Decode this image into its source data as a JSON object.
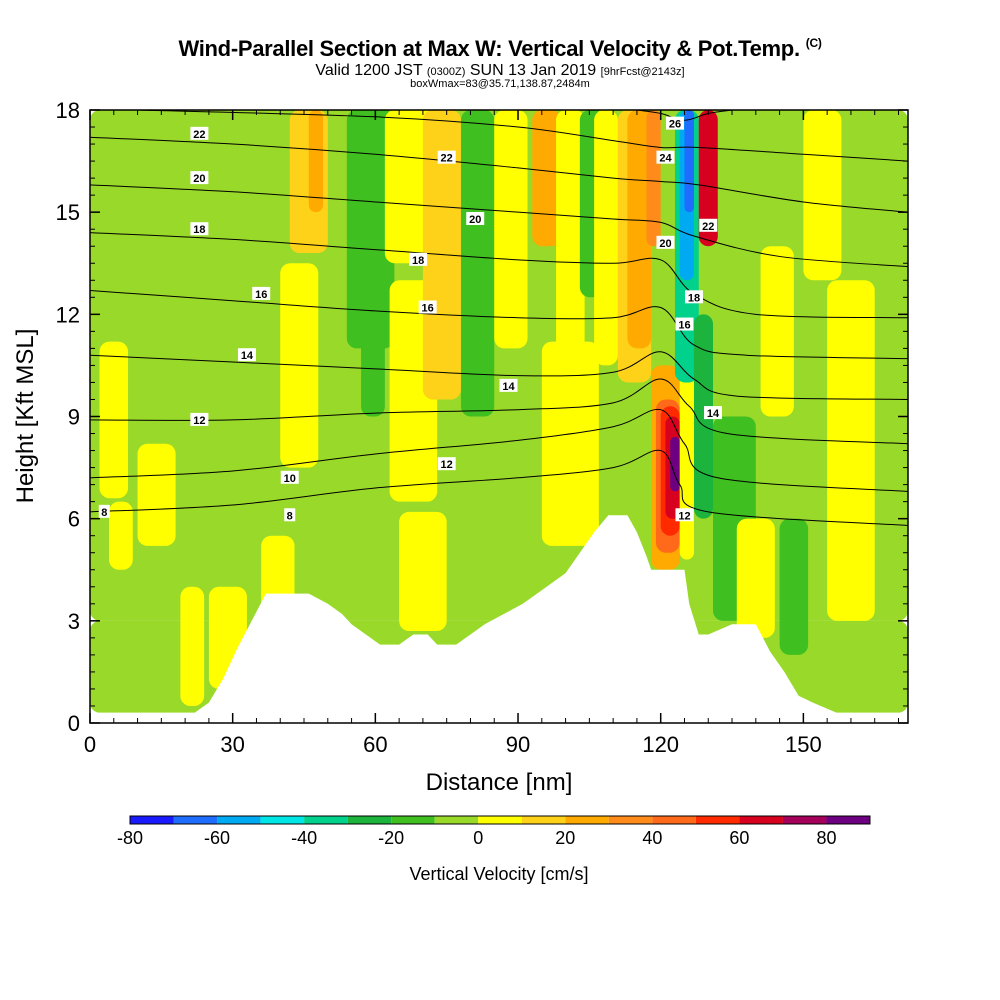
{
  "title": {
    "main": "Wind-Parallel Section at Max W: Vertical Velocity & Pot.Temp.",
    "copyright": "(C)",
    "valid_prefix": "Valid 1200 JST",
    "valid_z": "(0300Z)",
    "valid_date": "SUN 13 Jan 2019",
    "valid_fcst": "[9hrFcst@2143z]",
    "box": "boxWmax=83@35.71,138.87,2484m"
  },
  "chart_data": {
    "type": "heatmap",
    "title": "Wind-Parallel Section at Max W: Vertical Velocity & Pot.Temp.",
    "xlabel": "Distance [nm]",
    "ylabel": "Height [Kft MSL]",
    "xlim": [
      0,
      172
    ],
    "ylim": [
      0,
      18
    ],
    "x_ticks": [
      "0",
      "30",
      "60",
      "90",
      "120",
      "150"
    ],
    "x_tick_values": [
      0,
      30,
      60,
      90,
      120,
      150
    ],
    "y_ticks": [
      "0",
      "3",
      "6",
      "9",
      "12",
      "15",
      "18"
    ],
    "y_tick_values": [
      0,
      3,
      6,
      9,
      12,
      15,
      18
    ],
    "colorbar": {
      "label": "Vertical Velocity [cm/s]",
      "ticks": [
        "-80",
        "-60",
        "-40",
        "-20",
        "0",
        "20",
        "40",
        "60",
        "80"
      ],
      "range": [
        -80,
        90
      ],
      "bins": [
        {
          "min": -80,
          "max": -70,
          "color": "#1a1aff"
        },
        {
          "min": -70,
          "max": -60,
          "color": "#1f6dff"
        },
        {
          "min": -60,
          "max": -50,
          "color": "#00aaf2"
        },
        {
          "min": -50,
          "max": -40,
          "color": "#00e6e6"
        },
        {
          "min": -40,
          "max": -30,
          "color": "#00d18b"
        },
        {
          "min": -30,
          "max": -20,
          "color": "#1cb43c"
        },
        {
          "min": -20,
          "max": -10,
          "color": "#3fbf20"
        },
        {
          "min": -10,
          "max": 0,
          "color": "#99d92a"
        },
        {
          "min": 0,
          "max": 10,
          "color": "#ffff00"
        },
        {
          "min": 10,
          "max": 20,
          "color": "#ffd21a"
        },
        {
          "min": 20,
          "max": 30,
          "color": "#ffaa00"
        },
        {
          "min": 30,
          "max": 40,
          "color": "#ff8c1a"
        },
        {
          "min": 40,
          "max": 50,
          "color": "#ff6a1a"
        },
        {
          "min": 50,
          "max": 60,
          "color": "#ff2a00"
        },
        {
          "min": 60,
          "max": 70,
          "color": "#d7001e"
        },
        {
          "min": 70,
          "max": 80,
          "color": "#a4005a"
        },
        {
          "min": 80,
          "max": 90,
          "color": "#6c0080"
        }
      ]
    },
    "terrain": [
      [
        0,
        0.3
      ],
      [
        22,
        0.3
      ],
      [
        25,
        0.6
      ],
      [
        28,
        1.3
      ],
      [
        31,
        2.2
      ],
      [
        34,
        3.0
      ],
      [
        37,
        3.8
      ],
      [
        41,
        3.8
      ],
      [
        46,
        3.8
      ],
      [
        50,
        3.5
      ],
      [
        53,
        3.2
      ],
      [
        55,
        2.9
      ],
      [
        58,
        2.6
      ],
      [
        61,
        2.3
      ],
      [
        65,
        2.3
      ],
      [
        68,
        2.6
      ],
      [
        71,
        2.6
      ],
      [
        73,
        2.3
      ],
      [
        77,
        2.3
      ],
      [
        80,
        2.6
      ],
      [
        83,
        2.9
      ],
      [
        87,
        3.2
      ],
      [
        91,
        3.5
      ],
      [
        94,
        3.8
      ],
      [
        97,
        4.1
      ],
      [
        100,
        4.4
      ],
      [
        103,
        5.0
      ],
      [
        106,
        5.6
      ],
      [
        109,
        6.1
      ],
      [
        113,
        6.1
      ],
      [
        115,
        5.6
      ],
      [
        117,
        4.9
      ],
      [
        118,
        4.5
      ],
      [
        125,
        4.5
      ],
      [
        126,
        3.5
      ],
      [
        128,
        2.6
      ],
      [
        130,
        2.6
      ],
      [
        135,
        2.9
      ],
      [
        140,
        2.9
      ],
      [
        143,
        2.1
      ],
      [
        146,
        1.5
      ],
      [
        149,
        0.8
      ],
      [
        152,
        0.6
      ],
      [
        157,
        0.3
      ],
      [
        172,
        0.3
      ]
    ],
    "theta_contours": [
      {
        "label": "8",
        "points": [
          [
            0,
            6.2
          ],
          [
            30,
            6.4
          ],
          [
            60,
            6.9
          ],
          [
            90,
            7.2
          ],
          [
            110,
            7.5
          ],
          [
            120,
            8.0
          ],
          [
            124,
            7.0
          ],
          [
            130,
            6.2
          ],
          [
            172,
            5.8
          ]
        ]
      },
      {
        "label": "10",
        "points": [
          [
            0,
            7.2
          ],
          [
            30,
            7.4
          ],
          [
            60,
            7.9
          ],
          [
            90,
            8.3
          ],
          [
            110,
            8.7
          ],
          [
            120,
            9.2
          ],
          [
            125,
            8.2
          ],
          [
            132,
            7.2
          ],
          [
            172,
            6.8
          ]
        ]
      },
      {
        "label": "12",
        "points": [
          [
            0,
            8.9
          ],
          [
            30,
            8.9
          ],
          [
            60,
            9.1
          ],
          [
            90,
            9.2
          ],
          [
            110,
            9.4
          ],
          [
            120,
            10.1
          ],
          [
            126,
            9.3
          ],
          [
            134,
            8.5
          ],
          [
            172,
            8.2
          ]
        ]
      },
      {
        "label": "14",
        "points": [
          [
            0,
            10.8
          ],
          [
            30,
            10.6
          ],
          [
            60,
            10.4
          ],
          [
            90,
            10.2
          ],
          [
            110,
            10.3
          ],
          [
            120,
            10.9
          ],
          [
            127,
            10.1
          ],
          [
            136,
            9.6
          ],
          [
            172,
            9.5
          ]
        ]
      },
      {
        "label": "16",
        "points": [
          [
            0,
            12.7
          ],
          [
            30,
            12.4
          ],
          [
            60,
            12.1
          ],
          [
            90,
            11.9
          ],
          [
            110,
            11.9
          ],
          [
            120,
            12.2
          ],
          [
            127,
            11.1
          ],
          [
            138,
            10.8
          ],
          [
            172,
            10.7
          ]
        ]
      },
      {
        "label": "18",
        "points": [
          [
            0,
            14.4
          ],
          [
            30,
            14.2
          ],
          [
            60,
            13.9
          ],
          [
            90,
            13.6
          ],
          [
            110,
            13.5
          ],
          [
            120,
            13.6
          ],
          [
            127,
            12.6
          ],
          [
            140,
            12.0
          ],
          [
            172,
            11.9
          ]
        ]
      },
      {
        "label": "20",
        "points": [
          [
            0,
            15.8
          ],
          [
            30,
            15.6
          ],
          [
            60,
            15.3
          ],
          [
            90,
            15.0
          ],
          [
            110,
            14.8
          ],
          [
            120,
            14.7
          ],
          [
            127,
            14.3
          ],
          [
            145,
            13.7
          ],
          [
            172,
            13.4
          ]
        ]
      },
      {
        "label": "22",
        "points": [
          [
            0,
            17.2
          ],
          [
            30,
            17.0
          ],
          [
            60,
            16.7
          ],
          [
            90,
            16.3
          ],
          [
            110,
            16.0
          ],
          [
            120,
            15.9
          ],
          [
            128,
            15.8
          ],
          [
            150,
            15.3
          ],
          [
            172,
            15.0
          ]
        ]
      },
      {
        "label": "24",
        "points": [
          [
            10,
            18.0
          ],
          [
            60,
            17.8
          ],
          [
            90,
            17.5
          ],
          [
            110,
            17.1
          ],
          [
            120,
            16.9
          ],
          [
            128,
            16.9
          ],
          [
            150,
            16.7
          ],
          [
            172,
            16.5
          ]
        ]
      },
      {
        "label": "26",
        "points": [
          [
            115,
            18.0
          ],
          [
            120,
            17.9
          ],
          [
            125,
            17.7
          ],
          [
            130,
            17.9
          ],
          [
            135,
            18.0
          ]
        ]
      }
    ],
    "contour_labels": [
      {
        "text": "22",
        "x": 23,
        "y": 17.3
      },
      {
        "text": "20",
        "x": 23,
        "y": 16.0
      },
      {
        "text": "18",
        "x": 23,
        "y": 14.5
      },
      {
        "text": "16",
        "x": 36,
        "y": 12.6
      },
      {
        "text": "14",
        "x": 33,
        "y": 10.8
      },
      {
        "text": "12",
        "x": 23,
        "y": 8.9
      },
      {
        "text": "10",
        "x": 42,
        "y": 7.2
      },
      {
        "text": "8",
        "x": 42,
        "y": 6.1
      },
      {
        "text": "8",
        "x": 3,
        "y": 6.2
      },
      {
        "text": "22",
        "x": 75,
        "y": 16.6
      },
      {
        "text": "20",
        "x": 81,
        "y": 14.8
      },
      {
        "text": "18",
        "x": 69,
        "y": 13.6
      },
      {
        "text": "16",
        "x": 71,
        "y": 12.2
      },
      {
        "text": "14",
        "x": 88,
        "y": 9.9
      },
      {
        "text": "12",
        "x": 75,
        "y": 7.6
      },
      {
        "text": "26",
        "x": 123,
        "y": 17.6
      },
      {
        "text": "24",
        "x": 121,
        "y": 16.6
      },
      {
        "text": "22",
        "x": 130,
        "y": 14.6
      },
      {
        "text": "20",
        "x": 121,
        "y": 14.1
      },
      {
        "text": "18",
        "x": 127,
        "y": 12.5
      },
      {
        "text": "16",
        "x": 125,
        "y": 11.7
      },
      {
        "text": "14",
        "x": 131,
        "y": 9.1
      },
      {
        "text": "12",
        "x": 125,
        "y": 6.1
      }
    ],
    "velocity_field": [
      {
        "x": 0,
        "y": 3.0,
        "w": 172,
        "h": 15.0,
        "value": -5
      },
      {
        "x": 0,
        "y": 0.3,
        "w": 172,
        "h": 2.7,
        "value": -5
      },
      {
        "x": 2,
        "y": 6.6,
        "w": 6,
        "h": 4.6,
        "value": 5
      },
      {
        "x": 4,
        "y": 4.5,
        "w": 5,
        "h": 2.0,
        "value": 5
      },
      {
        "x": 10,
        "y": 5.2,
        "w": 8,
        "h": 3.0,
        "value": 5
      },
      {
        "x": 19,
        "y": 0.5,
        "w": 5,
        "h": 3.5,
        "value": 5
      },
      {
        "x": 25,
        "y": 1.0,
        "w": 8,
        "h": 3.0,
        "value": 5
      },
      {
        "x": 36,
        "y": 2.2,
        "w": 7,
        "h": 3.3,
        "value": 5
      },
      {
        "x": 40,
        "y": 7.5,
        "w": 8,
        "h": 6.0,
        "value": 5
      },
      {
        "x": 42,
        "y": 13.8,
        "w": 8,
        "h": 4.2,
        "value": 15
      },
      {
        "x": 46,
        "y": 15.0,
        "w": 3,
        "h": 3.0,
        "value": 25
      },
      {
        "x": 54,
        "y": 11.0,
        "w": 10,
        "h": 7.0,
        "value": -15
      },
      {
        "x": 57,
        "y": 9.0,
        "w": 5,
        "h": 4.0,
        "value": -15
      },
      {
        "x": 63,
        "y": 6.5,
        "w": 10,
        "h": 6.5,
        "value": 5
      },
      {
        "x": 65,
        "y": 2.7,
        "w": 10,
        "h": 3.5,
        "value": 5
      },
      {
        "x": 62,
        "y": 13.5,
        "w": 14,
        "h": 4.5,
        "value": 5
      },
      {
        "x": 70,
        "y": 9.5,
        "w": 8,
        "h": 8.5,
        "value": 15
      },
      {
        "x": 78,
        "y": 9.0,
        "w": 7,
        "h": 9.0,
        "value": -15
      },
      {
        "x": 85,
        "y": 11.0,
        "w": 7,
        "h": 7.0,
        "value": 5
      },
      {
        "x": 93,
        "y": 14.0,
        "w": 6,
        "h": 4.0,
        "value": 25
      },
      {
        "x": 98,
        "y": 10.5,
        "w": 6,
        "h": 7.5,
        "value": 5
      },
      {
        "x": 103,
        "y": 12.5,
        "w": 5,
        "h": 5.5,
        "value": -15
      },
      {
        "x": 106,
        "y": 10.5,
        "w": 5,
        "h": 7.5,
        "value": 5
      },
      {
        "x": 95,
        "y": 5.2,
        "w": 12,
        "h": 6.0,
        "value": 5
      },
      {
        "x": 111,
        "y": 10.0,
        "w": 7,
        "h": 8.0,
        "value": 15
      },
      {
        "x": 113,
        "y": 11.0,
        "w": 5,
        "h": 7.0,
        "value": 25
      },
      {
        "x": 117,
        "y": 14.0,
        "w": 3,
        "h": 4.0,
        "value": 35
      },
      {
        "x": 118,
        "y": 4.5,
        "w": 6,
        "h": 6.0,
        "value": 25
      },
      {
        "x": 119,
        "y": 5.0,
        "w": 5,
        "h": 4.5,
        "value": 45
      },
      {
        "x": 120,
        "y": 5.5,
        "w": 4,
        "h": 3.8,
        "value": 55
      },
      {
        "x": 121,
        "y": 6.0,
        "w": 3,
        "h": 3.0,
        "value": 65
      },
      {
        "x": 122,
        "y": 6.8,
        "w": 2,
        "h": 1.6,
        "value": 85
      },
      {
        "x": 124,
        "y": 4.8,
        "w": 3,
        "h": 5.5,
        "value": 5
      },
      {
        "x": 123,
        "y": 10.0,
        "w": 5,
        "h": 8.0,
        "value": -35
      },
      {
        "x": 124,
        "y": 13.0,
        "w": 3,
        "h": 5.0,
        "value": -55
      },
      {
        "x": 125,
        "y": 15.0,
        "w": 2,
        "h": 3.0,
        "value": -65
      },
      {
        "x": 127,
        "y": 6.0,
        "w": 4,
        "h": 6.0,
        "value": -25
      },
      {
        "x": 128,
        "y": 14.0,
        "w": 4,
        "h": 4.0,
        "value": 65
      },
      {
        "x": 131,
        "y": 3.0,
        "w": 9,
        "h": 6.0,
        "value": -15
      },
      {
        "x": 136,
        "y": 2.5,
        "w": 8,
        "h": 3.5,
        "value": 5
      },
      {
        "x": 141,
        "y": 9.0,
        "w": 7,
        "h": 5.0,
        "value": 5
      },
      {
        "x": 145,
        "y": 2.0,
        "w": 6,
        "h": 4.0,
        "value": -15
      },
      {
        "x": 155,
        "y": 3.0,
        "w": 10,
        "h": 10.0,
        "value": 5
      },
      {
        "x": 150,
        "y": 13.0,
        "w": 8,
        "h": 5.0,
        "value": 5
      }
    ]
  }
}
